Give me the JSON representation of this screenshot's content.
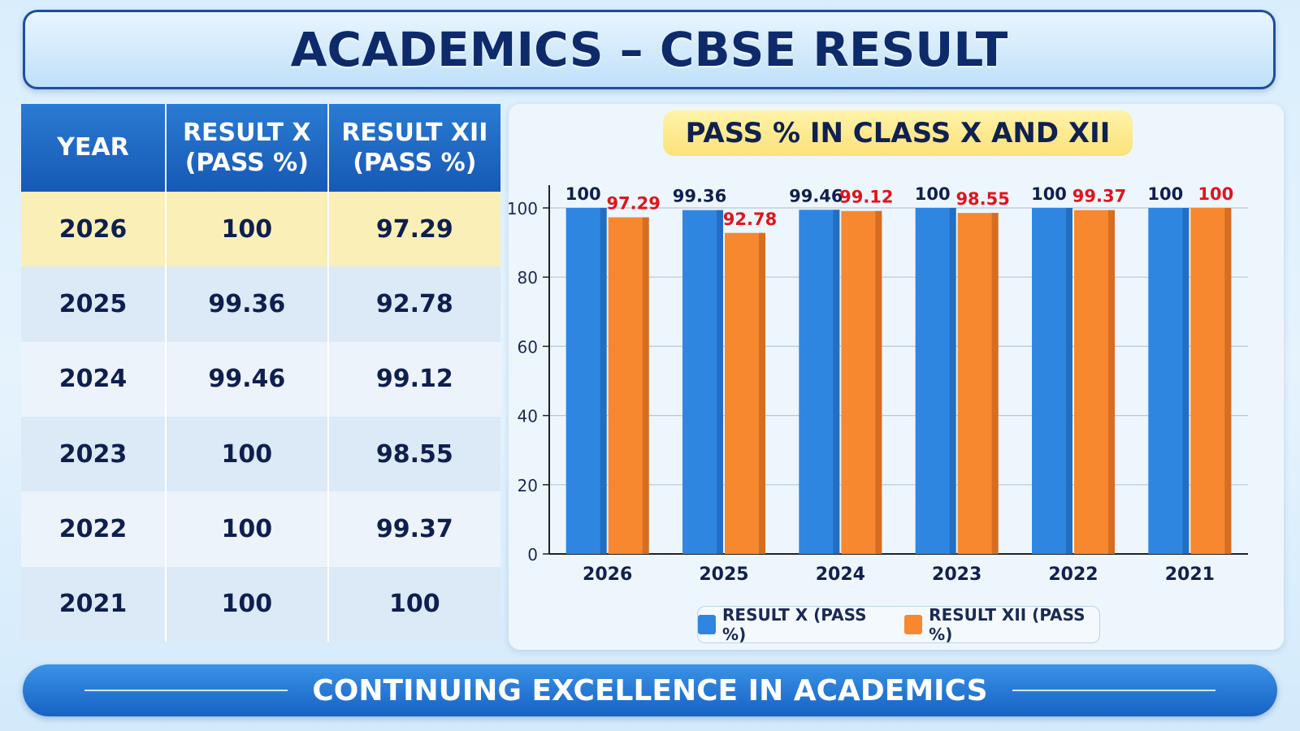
{
  "title": "ACADEMICS – CBSE RESULT",
  "table": {
    "headers": [
      "YEAR",
      "RESULT X (PASS %)",
      "RESULT XII (PASS %)"
    ],
    "header_lines": [
      [
        "YEAR"
      ],
      [
        "RESULT X",
        "(PASS %)"
      ],
      [
        "RESULT XII",
        "(PASS %)"
      ]
    ],
    "rows": [
      [
        "2026",
        "100",
        "97.29"
      ],
      [
        "2025",
        "99.36",
        "92.78"
      ],
      [
        "2024",
        "99.46",
        "99.12"
      ],
      [
        "2023",
        "100",
        "98.55"
      ],
      [
        "2022",
        "100",
        "99.37"
      ],
      [
        "2021",
        "100",
        "100"
      ]
    ]
  },
  "footer": {
    "text": "CONTINUING EXCELLENCE IN ACADEMICS"
  },
  "colors": {
    "series_x": "#2f86e0",
    "series_xii": "#f7882f",
    "label_x": "#0e1f4f",
    "label_xii": "#e0141c"
  },
  "chart_data": {
    "type": "bar",
    "title": "PASS % IN CLASS X AND XII",
    "xlabel": "",
    "ylabel": "",
    "categories": [
      "2026",
      "2025",
      "2024",
      "2023",
      "2022",
      "2021"
    ],
    "series": [
      {
        "name": "RESULT X (PASS %)",
        "values": [
          100,
          99.36,
          99.46,
          100,
          100,
          100
        ]
      },
      {
        "name": "RESULT XII (PASS %)",
        "values": [
          97.29,
          92.78,
          99.12,
          98.55,
          99.37,
          100
        ]
      }
    ],
    "ylim": [
      0,
      100
    ],
    "yticks": [
      0,
      20,
      40,
      60,
      80,
      100
    ],
    "grid": true,
    "legend": "bottom"
  }
}
